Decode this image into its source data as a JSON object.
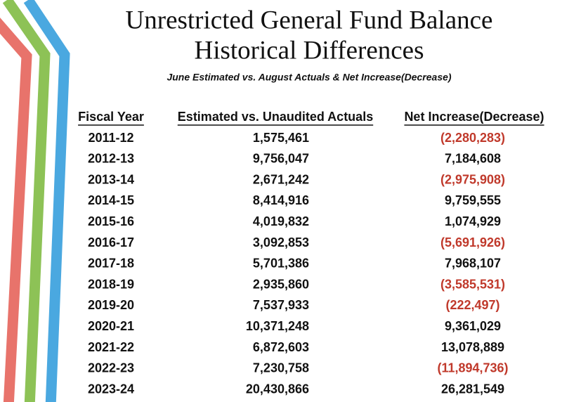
{
  "header": {
    "title": [
      "Unrestricted General Fund Balance",
      "Historical Differences"
    ],
    "subtitle": "June Estimated vs. August Actuals & Net Increase(Decrease)"
  },
  "table": {
    "headers": [
      "Fiscal Year",
      "Estimated  vs. Unaudited Actuals",
      "Net Increase(Decrease)"
    ],
    "rows": [
      [
        "2011-12",
        "1,575,461",
        "(2,280,283)"
      ],
      [
        "2012-13",
        "9,756,047",
        "7,184,608"
      ],
      [
        "2013-14",
        "2,671,242",
        "(2,975,908)"
      ],
      [
        "2014-15",
        "8,414,916",
        "9,759,555"
      ],
      [
        "2015-16",
        "4,019,832",
        "1,074,929"
      ],
      [
        "2016-17",
        "3,092,853",
        "(5,691,926)"
      ],
      [
        "2017-18",
        "5,701,386",
        "7,968,107"
      ],
      [
        "2018-19",
        "2,935,860",
        "(3,585,531)"
      ],
      [
        "2019-20",
        "7,537,933",
        "(222,497)"
      ],
      [
        "2020-21",
        "10,371,248",
        "9,361,029"
      ],
      [
        "2021-22",
        "6,872,603",
        "13,078,889"
      ],
      [
        "2022-23",
        "7,230,758",
        "(11,894,736)"
      ],
      [
        "2023-24",
        "20,430,866",
        "26,281,549"
      ]
    ]
  }
}
